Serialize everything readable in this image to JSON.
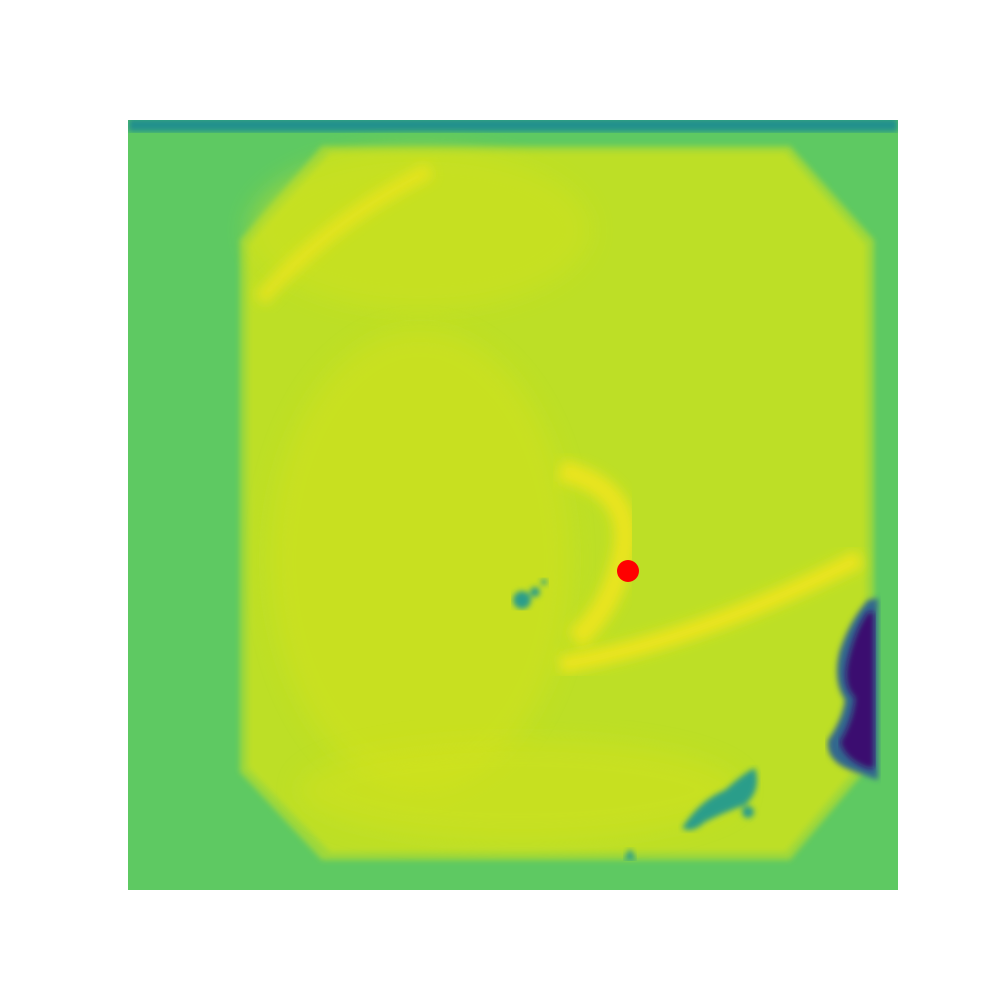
{
  "image": {
    "colormap": "viridis",
    "colors": {
      "background": "#ffffff",
      "outer_field": "#5ec962",
      "top_band": "#21918c",
      "inner_region": "#bddf26",
      "inner_region_light": "#d2e21b",
      "bright_streak": "#f2e51d",
      "dark_patch": "#3b0f70",
      "dark_patch_mid": "#31688e",
      "teal_specks": "#2a9d8a",
      "marker": "#ff0000"
    }
  }
}
